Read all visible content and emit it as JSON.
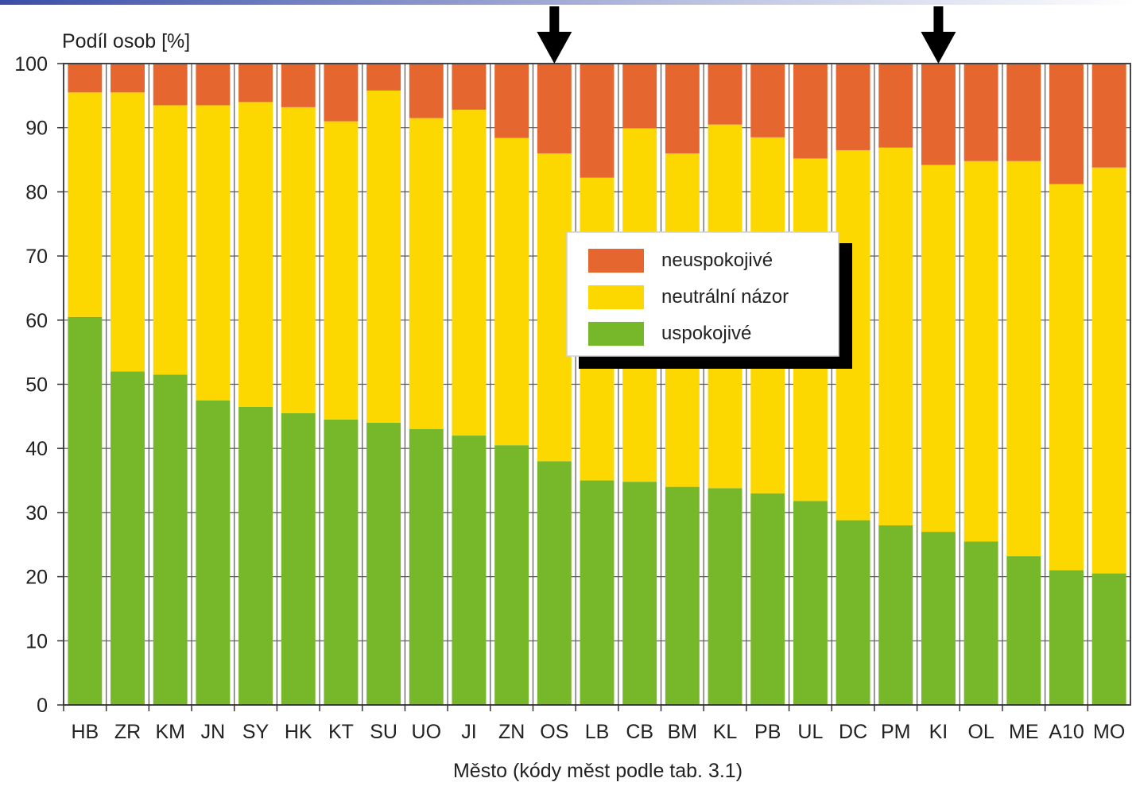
{
  "chart_data": {
    "type": "bar",
    "stacked": true,
    "ylabel": "Podíl osob [%]",
    "xlabel": "Město (kódy měst podle tab. 3.1)",
    "ylim": [
      0,
      100
    ],
    "yticks": [
      0,
      10,
      20,
      30,
      40,
      50,
      60,
      70,
      80,
      90,
      100
    ],
    "grid": true,
    "legend_position": "center",
    "categories": [
      "HB",
      "ZR",
      "KM",
      "JN",
      "SY",
      "HK",
      "KT",
      "SU",
      "UO",
      "JI",
      "ZN",
      "OS",
      "LB",
      "CB",
      "BM",
      "KL",
      "PB",
      "UL",
      "DC",
      "PM",
      "KI",
      "OL",
      "ME",
      "A10",
      "MO"
    ],
    "series": [
      {
        "name": "uspokojivé",
        "color": "#76b82a",
        "values": [
          60.5,
          52,
          51.5,
          47.5,
          46.5,
          45.5,
          44.5,
          44,
          43,
          42,
          40.5,
          38,
          35,
          34.8,
          34,
          33.8,
          33,
          31.8,
          28.8,
          28,
          27,
          25.5,
          23.2,
          21,
          20.5
        ]
      },
      {
        "name": "neutrální názor",
        "color": "#fcd800",
        "values": [
          35,
          43.5,
          42,
          46,
          47.5,
          47.7,
          46.5,
          51.8,
          48.5,
          50.8,
          47.9,
          48,
          47.2,
          55.1,
          52,
          56.7,
          55.5,
          53.4,
          57.7,
          58.9,
          57.2,
          59.3,
          61.6,
          60.2,
          63.3
        ]
      },
      {
        "name": "neuspokojivé",
        "color": "#e66630",
        "values": [
          4.5,
          4.5,
          6.5,
          6.5,
          6,
          6.8,
          9,
          4.2,
          8.5,
          7.2,
          11.6,
          14,
          17.8,
          10.1,
          14,
          9.5,
          11.5,
          14.8,
          13.5,
          13.1,
          15.8,
          15.2,
          15.2,
          18.8,
          16.2
        ]
      }
    ],
    "highlighted_categories": [
      "OS",
      "KI"
    ]
  },
  "legend": {
    "items": [
      {
        "label": "neuspokojivé",
        "color": "#e66630"
      },
      {
        "label": "neutrální názor",
        "color": "#fcd800"
      },
      {
        "label": "uspokojivé",
        "color": "#76b82a"
      }
    ]
  },
  "icons": {
    "marker": "down-arrow-icon"
  }
}
